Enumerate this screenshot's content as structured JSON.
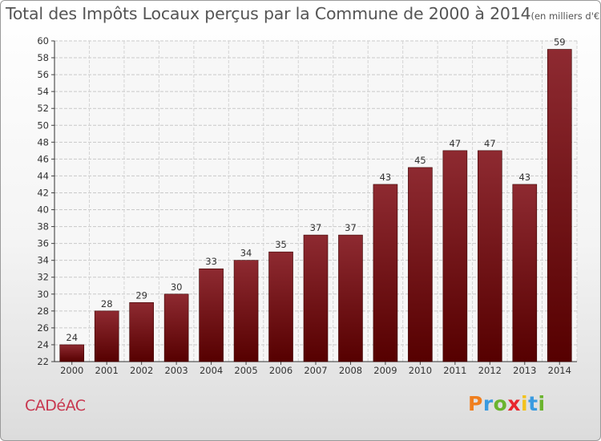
{
  "title": "Total des Impôts Locaux perçus par la Commune de 2000 à 2014",
  "title_unit": "(en milliers d'€)",
  "commune": "CADéAC",
  "brand": {
    "letters": [
      "P",
      "r",
      "o",
      "x",
      "i",
      "t",
      "i"
    ],
    "colors": [
      "#f07f1e",
      "#3a9be0",
      "#6ab42e",
      "#e8262d",
      "#f3c21c",
      "#3a9be0",
      "#6ab42e"
    ]
  },
  "chart_data": {
    "type": "bar",
    "categories": [
      "2000",
      "2001",
      "2002",
      "2003",
      "2004",
      "2005",
      "2006",
      "2007",
      "2008",
      "2009",
      "2010",
      "2011",
      "2012",
      "2013",
      "2014"
    ],
    "values": [
      24,
      28,
      29,
      30,
      33,
      34,
      35,
      37,
      37,
      43,
      45,
      47,
      47,
      43,
      59
    ],
    "ylim": [
      22,
      60
    ],
    "yticks": [
      22,
      24,
      26,
      28,
      30,
      32,
      34,
      36,
      38,
      40,
      42,
      44,
      46,
      48,
      50,
      52,
      54,
      56,
      58,
      60
    ],
    "grid": true,
    "bar_color": "#7a1c22"
  }
}
